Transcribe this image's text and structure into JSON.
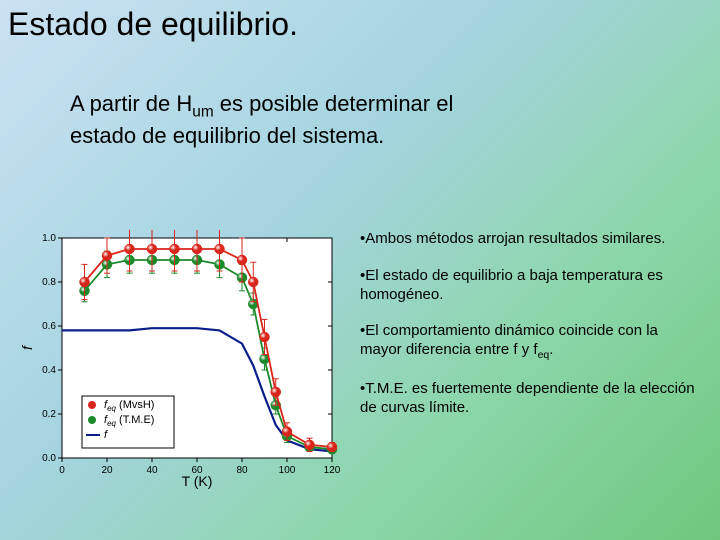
{
  "title": "Estado de equilibrio.",
  "intro_line1": "A partir de H",
  "intro_sub": "um",
  "intro_line1b": " es posible determinar el",
  "intro_line2": "estado de equilibrio del sistema.",
  "bullets": {
    "b1": "•Ambos métodos arrojan resultados similares.",
    "b2": "•El estado de equilibrio a baja temperatura es homogéneo.",
    "b3_a": "•El comportamiento dinámico coincide con la mayor diferencia entre f y f",
    "b3_sub": "eq",
    "b3_b": ".",
    "b4": "•T.M.E. es fuertemente dependiente de la elección de curvas límite."
  },
  "chart": {
    "type": "line-scatter",
    "xlabel": "T (K)",
    "ylabel": "f",
    "xlim": [
      0,
      120
    ],
    "xtick_step": 20,
    "ylim": [
      0.0,
      1.0
    ],
    "ytick_step": 0.2,
    "plot_bg": "#ffffff",
    "axis_color": "#000000",
    "tick_fontsize": 10,
    "label_fontsize": 14,
    "legend": {
      "border_color": "#000000",
      "items": [
        {
          "marker": "circle",
          "color": "#d9261c",
          "label_tex": "f_eq (MvsH)",
          "label": "f",
          "label_sub": "eq",
          "label_tail": " (MvsH)"
        },
        {
          "marker": "circle",
          "color": "#1c8a2b",
          "label_tex": "f_eq (T.M.E)",
          "label": "f",
          "label_sub": "eq",
          "label_tail": " (T.M.E)"
        },
        {
          "marker": "line",
          "color": "#0a1e8a",
          "label_tex": "f",
          "label": "f",
          "label_sub": "",
          "label_tail": ""
        }
      ]
    },
    "series_red": {
      "color": "#d9261c",
      "marker_size": 5,
      "line_width": 1.8,
      "x": [
        10,
        20,
        30,
        40,
        50,
        60,
        70,
        80,
        85,
        90,
        95,
        100,
        110,
        120
      ],
      "y": [
        0.8,
        0.92,
        0.95,
        0.95,
        0.95,
        0.95,
        0.95,
        0.9,
        0.8,
        0.55,
        0.3,
        0.12,
        0.06,
        0.05
      ],
      "err": [
        0.08,
        0.08,
        0.1,
        0.1,
        0.1,
        0.1,
        0.1,
        0.1,
        0.09,
        0.08,
        0.06,
        0.04,
        0.03,
        0.02
      ]
    },
    "series_green": {
      "color": "#1c8a2b",
      "marker_size": 5,
      "line_width": 1.8,
      "x": [
        10,
        20,
        30,
        40,
        50,
        60,
        70,
        80,
        85,
        90,
        95,
        100,
        110,
        120
      ],
      "y": [
        0.76,
        0.88,
        0.9,
        0.9,
        0.9,
        0.9,
        0.88,
        0.82,
        0.7,
        0.45,
        0.24,
        0.1,
        0.05,
        0.04
      ],
      "err": [
        0.05,
        0.06,
        0.06,
        0.06,
        0.06,
        0.06,
        0.06,
        0.06,
        0.05,
        0.05,
        0.04,
        0.03,
        0.02,
        0.02
      ]
    },
    "series_blue": {
      "color": "#0a1e8a",
      "line_width": 2.2,
      "x": [
        0,
        10,
        20,
        30,
        40,
        50,
        60,
        70,
        80,
        85,
        90,
        95,
        100,
        110,
        120
      ],
      "y": [
        0.58,
        0.58,
        0.58,
        0.58,
        0.59,
        0.59,
        0.59,
        0.58,
        0.52,
        0.42,
        0.28,
        0.15,
        0.08,
        0.04,
        0.03
      ]
    }
  }
}
